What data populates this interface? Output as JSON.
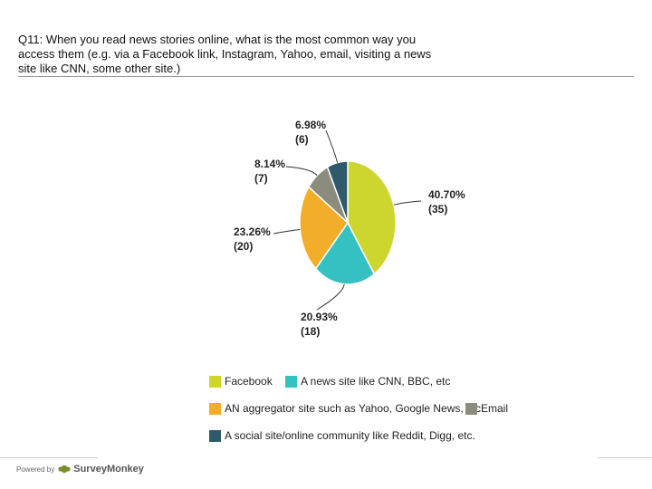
{
  "question": "Q11: When you read news stories online, what is the most common way you access them (e.g. via a Facebook link, Instagram, Yahoo, email, visiting a news site like CNN, some other site.)",
  "chart_data": {
    "type": "pie",
    "slices": [
      {
        "name": "Facebook",
        "percent": 40.7,
        "count": 35,
        "percent_label": "40.70%",
        "count_label": "(35)",
        "color": "#cdd62f"
      },
      {
        "name": "A news site like CNN, BBC, etc",
        "percent": 20.93,
        "count": 18,
        "percent_label": "20.93%",
        "count_label": "(18)",
        "color": "#35c1c1"
      },
      {
        "name": "AN aggregator site such as Yahoo, Google News, etc.",
        "percent": 23.26,
        "count": 20,
        "percent_label": "23.26%",
        "count_label": "(20)",
        "color": "#f2ad2a"
      },
      {
        "name": "Email",
        "percent": 8.14,
        "count": 7,
        "percent_label": "8.14%",
        "count_label": "(7)",
        "color": "#8c8c7e"
      },
      {
        "name": "A social site/online community like Reddit, Digg, etc.",
        "percent": 6.98,
        "count": 6,
        "percent_label": "6.98%",
        "count_label": "(6)",
        "color": "#2f5a6b"
      }
    ],
    "legend_placement": "bottom"
  },
  "footer": {
    "powered_by": "Powered by",
    "brand": "SurveyMonkey"
  },
  "colors": {
    "logo": "#7a8f2a"
  },
  "icons": {
    "logo": "surveymonkey-logo-icon"
  }
}
